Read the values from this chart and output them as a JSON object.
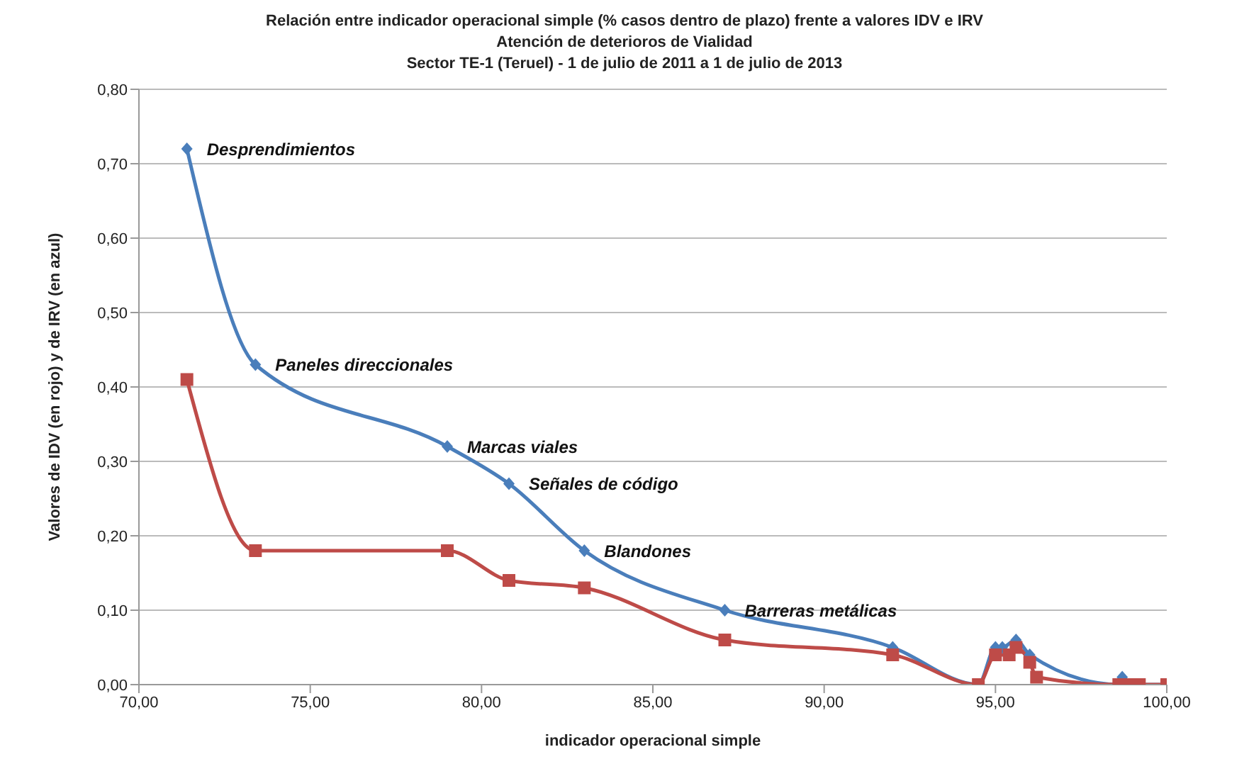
{
  "chart_data": {
    "type": "line",
    "title": "Relación entre indicador operacional simple (% casos dentro de plazo) frente a valores IDV e IRV",
    "subtitle": "Atención de deterioros de Vialidad\nSector TE-1 (Teruel) - 1 de julio de 2011 a 1 de julio de 2013",
    "xlabel": "indicador operacional simple",
    "ylabel": "Valores de IDV (en rojo) y de IRV (en azul)",
    "series": [
      {
        "color": "#4a7ebb",
        "marker": "diamond",
        "x": [
          71.4,
          73.4,
          79.0,
          80.8,
          83.0,
          87.1,
          92.0,
          94.5,
          95.0,
          95.2,
          95.4,
          95.6,
          96.0,
          96.2,
          98.6,
          98.7,
          99.0,
          99.2,
          100.0
        ],
        "values": [
          0.72,
          0.43,
          0.32,
          0.27,
          0.18,
          0.1,
          0.05,
          0.0,
          0.05,
          0.05,
          null,
          0.06,
          0.04,
          null,
          0.0,
          0.01,
          0.0,
          0.0,
          0.0
        ]
      },
      {
        "color": "#be4b48",
        "marker": "square",
        "x": [
          71.4,
          73.4,
          79.0,
          80.8,
          83.0,
          87.1,
          92.0,
          94.5,
          95.0,
          95.2,
          95.4,
          95.6,
          96.0,
          96.2,
          98.6,
          98.8,
          99.0,
          99.2,
          100.0
        ],
        "values": [
          0.41,
          0.18,
          0.18,
          0.14,
          0.13,
          0.06,
          0.04,
          0.0,
          0.04,
          null,
          0.04,
          0.05,
          0.03,
          0.01,
          0.0,
          0.0,
          0.0,
          0.0,
          0.0
        ]
      }
    ],
    "xlim": [
      70,
      100
    ],
    "xticks": [
      {
        "value": 70,
        "label": "70,00"
      },
      {
        "value": 75,
        "label": "75,00"
      },
      {
        "value": 80,
        "label": "80,00"
      },
      {
        "value": 85,
        "label": "85,00"
      },
      {
        "value": 90,
        "label": "90,00"
      },
      {
        "value": 95,
        "label": "95,00"
      },
      {
        "value": 100,
        "label": "100,00"
      }
    ],
    "ylim": [
      0,
      0.8
    ],
    "yticks": [
      {
        "value": 0,
        "label": "0,00"
      },
      {
        "value": 0.1,
        "label": "0,10"
      },
      {
        "value": 0.2,
        "label": "0,20"
      },
      {
        "value": 0.3,
        "label": "0,30"
      },
      {
        "value": 0.4,
        "label": "0,40"
      },
      {
        "value": 0.5,
        "label": "0,50"
      },
      {
        "value": 0.6,
        "label": "0,60"
      },
      {
        "value": 0.7,
        "label": "0,70"
      },
      {
        "value": 0.8,
        "label": "0,80"
      }
    ],
    "grid": "y",
    "legend": false,
    "annotations": [
      {
        "text": "Desprendimientos",
        "x": 71.4,
        "y": 0.72
      },
      {
        "text": "Paneles direccionales",
        "x": 73.4,
        "y": 0.43
      },
      {
        "text": "Marcas viales",
        "x": 79.0,
        "y": 0.32
      },
      {
        "text": "Señales de código",
        "x": 80.8,
        "y": 0.27
      },
      {
        "text": "Blandones",
        "x": 83.0,
        "y": 0.18
      },
      {
        "text": "Barreras metálicas",
        "x": 87.1,
        "y": 0.1
      }
    ]
  }
}
